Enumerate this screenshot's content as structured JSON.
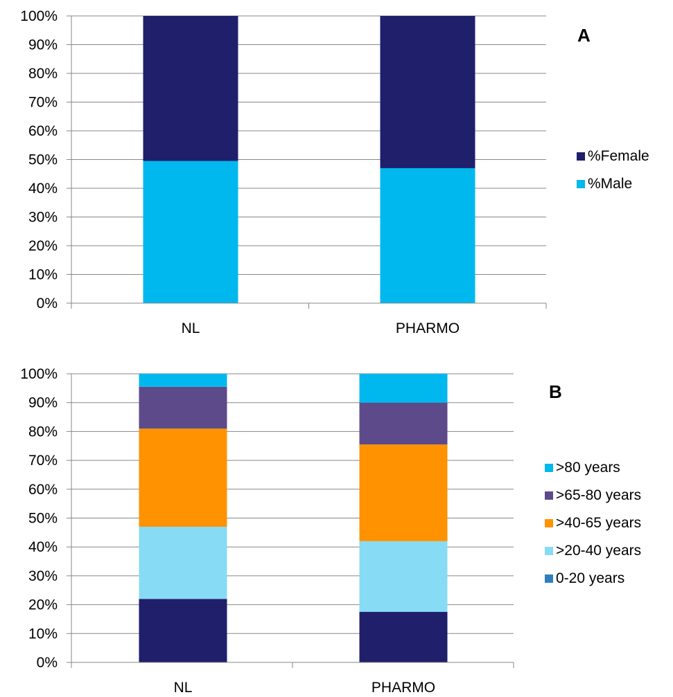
{
  "chart_data": [
    {
      "type": "bar",
      "stacked": true,
      "percent_stacked": true,
      "panel_label": "A",
      "categories": [
        "NL",
        "PHARMO"
      ],
      "y_tick_labels": [
        "0%",
        "10%",
        "20%",
        "30%",
        "40%",
        "50%",
        "60%",
        "70%",
        "80%",
        "90%",
        "100%"
      ],
      "ylim": [
        0,
        100
      ],
      "grid": true,
      "legend_position": "right",
      "series": [
        {
          "name": "%Male",
          "values": [
            49.5,
            47
          ],
          "color": "#00B8EE"
        },
        {
          "name": "%Female",
          "values": [
            50.5,
            53
          ],
          "color": "#1F1F6B"
        }
      ],
      "legend_order": [
        "%Female",
        "%Male"
      ]
    },
    {
      "type": "bar",
      "stacked": true,
      "percent_stacked": true,
      "panel_label": "B",
      "categories": [
        "NL",
        "PHARMO"
      ],
      "y_tick_labels": [
        "0%",
        "10%",
        "20%",
        "30%",
        "40%",
        "50%",
        "60%",
        "70%",
        "80%",
        "90%",
        "100%"
      ],
      "ylim": [
        0,
        100
      ],
      "grid": true,
      "legend_position": "right",
      "series": [
        {
          "name": "0-20 years",
          "values": [
            22,
            17.5
          ],
          "color": "#1F1F6B",
          "legend_color": "#2F7FC0"
        },
        {
          "name": ">20-40 years",
          "values": [
            25,
            24.5
          ],
          "color": "#87DBF5"
        },
        {
          "name": ">40-65 years",
          "values": [
            34,
            33.5
          ],
          "color": "#FF9200"
        },
        {
          "name": ">65-80 years",
          "values": [
            14.5,
            14.5
          ],
          "color": "#5D4A8B"
        },
        {
          "name": ">80 years",
          "values": [
            4.5,
            10
          ],
          "color": "#00B8EE"
        }
      ],
      "legend_order": [
        ">80 years",
        ">65-80 years",
        ">40-65 years",
        ">20-40 years",
        "0-20 years"
      ]
    }
  ]
}
